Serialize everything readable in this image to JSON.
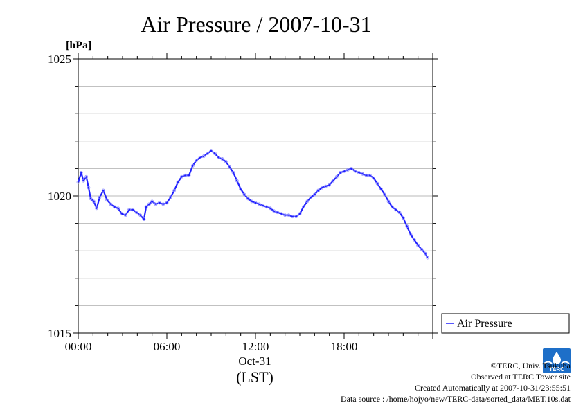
{
  "chart_data": {
    "type": "line",
    "title": "Air Pressure / 2007-10-31",
    "ylabel": "[hPa]",
    "xlabel_date": "Oct-31",
    "xlabel_tz": "(LST)",
    "ylim": [
      1015,
      1025
    ],
    "y_ticks": [
      "1025",
      "1020",
      "1015"
    ],
    "xlim": [
      0,
      24
    ],
    "x_ticks": [
      "00:00",
      "06:00",
      "12:00",
      "18:00"
    ],
    "grid": true,
    "legend_placement": "bottom-right, outside plot",
    "series": [
      {
        "name": "Air Pressure",
        "color": "#1f1fff",
        "x": [
          0.0,
          0.2,
          0.35,
          0.55,
          0.7,
          0.85,
          1.05,
          1.25,
          1.45,
          1.7,
          1.95,
          2.2,
          2.45,
          2.7,
          2.95,
          3.2,
          3.45,
          3.7,
          3.95,
          4.2,
          4.45,
          4.6,
          4.8,
          5.0,
          5.25,
          5.5,
          5.75,
          6.0,
          6.25,
          6.5,
          6.75,
          7.0,
          7.25,
          7.5,
          7.75,
          8.0,
          8.25,
          8.5,
          8.75,
          9.0,
          9.25,
          9.5,
          9.75,
          10.0,
          10.25,
          10.5,
          10.75,
          11.0,
          11.25,
          11.5,
          11.75,
          12.0,
          12.25,
          12.5,
          12.75,
          13.0,
          13.25,
          13.5,
          13.75,
          14.0,
          14.25,
          14.5,
          14.75,
          15.0,
          15.25,
          15.5,
          15.75,
          16.0,
          16.25,
          16.5,
          16.75,
          17.0,
          17.25,
          17.5,
          17.75,
          18.0,
          18.25,
          18.5,
          18.75,
          19.0,
          19.25,
          19.5,
          19.75,
          20.0,
          20.25,
          20.5,
          20.75,
          21.0,
          21.25,
          21.5,
          21.75,
          22.0,
          22.25,
          22.5,
          22.75,
          23.0,
          23.25,
          23.5,
          23.65
        ],
        "values": [
          1020.5,
          1020.85,
          1020.55,
          1020.7,
          1020.3,
          1019.9,
          1019.8,
          1019.55,
          1019.95,
          1020.2,
          1019.85,
          1019.7,
          1019.6,
          1019.55,
          1019.35,
          1019.3,
          1019.5,
          1019.5,
          1019.4,
          1019.3,
          1019.15,
          1019.6,
          1019.7,
          1019.8,
          1019.7,
          1019.75,
          1019.7,
          1019.75,
          1019.95,
          1020.2,
          1020.5,
          1020.7,
          1020.75,
          1020.75,
          1021.1,
          1021.3,
          1021.4,
          1021.45,
          1021.55,
          1021.65,
          1021.55,
          1021.4,
          1021.35,
          1021.25,
          1021.05,
          1020.85,
          1020.55,
          1020.25,
          1020.05,
          1019.9,
          1019.8,
          1019.75,
          1019.7,
          1019.65,
          1019.6,
          1019.55,
          1019.45,
          1019.4,
          1019.35,
          1019.3,
          1019.3,
          1019.25,
          1019.25,
          1019.35,
          1019.6,
          1019.8,
          1019.95,
          1020.05,
          1020.2,
          1020.3,
          1020.35,
          1020.4,
          1020.55,
          1020.7,
          1020.85,
          1020.9,
          1020.95,
          1021.0,
          1020.9,
          1020.85,
          1020.8,
          1020.75,
          1020.75,
          1020.65,
          1020.45,
          1020.25,
          1020.05,
          1019.8,
          1019.6,
          1019.5,
          1019.4,
          1019.2,
          1018.9,
          1018.6,
          1018.4,
          1018.2,
          1018.05,
          1017.9,
          1017.75
        ]
      }
    ]
  },
  "credits": {
    "copyright": "©TERC, Univ. Tsukuba",
    "observed": "Observed at TERC Tower site",
    "created": "Created Automatically at 2007-10-31/23:55:51",
    "source": "Data source : /home/hojyo/new/TERC-data/sorted_data/MET.10s.dat"
  },
  "logo": {
    "text": "TERC",
    "color": "#1e6fc8"
  }
}
